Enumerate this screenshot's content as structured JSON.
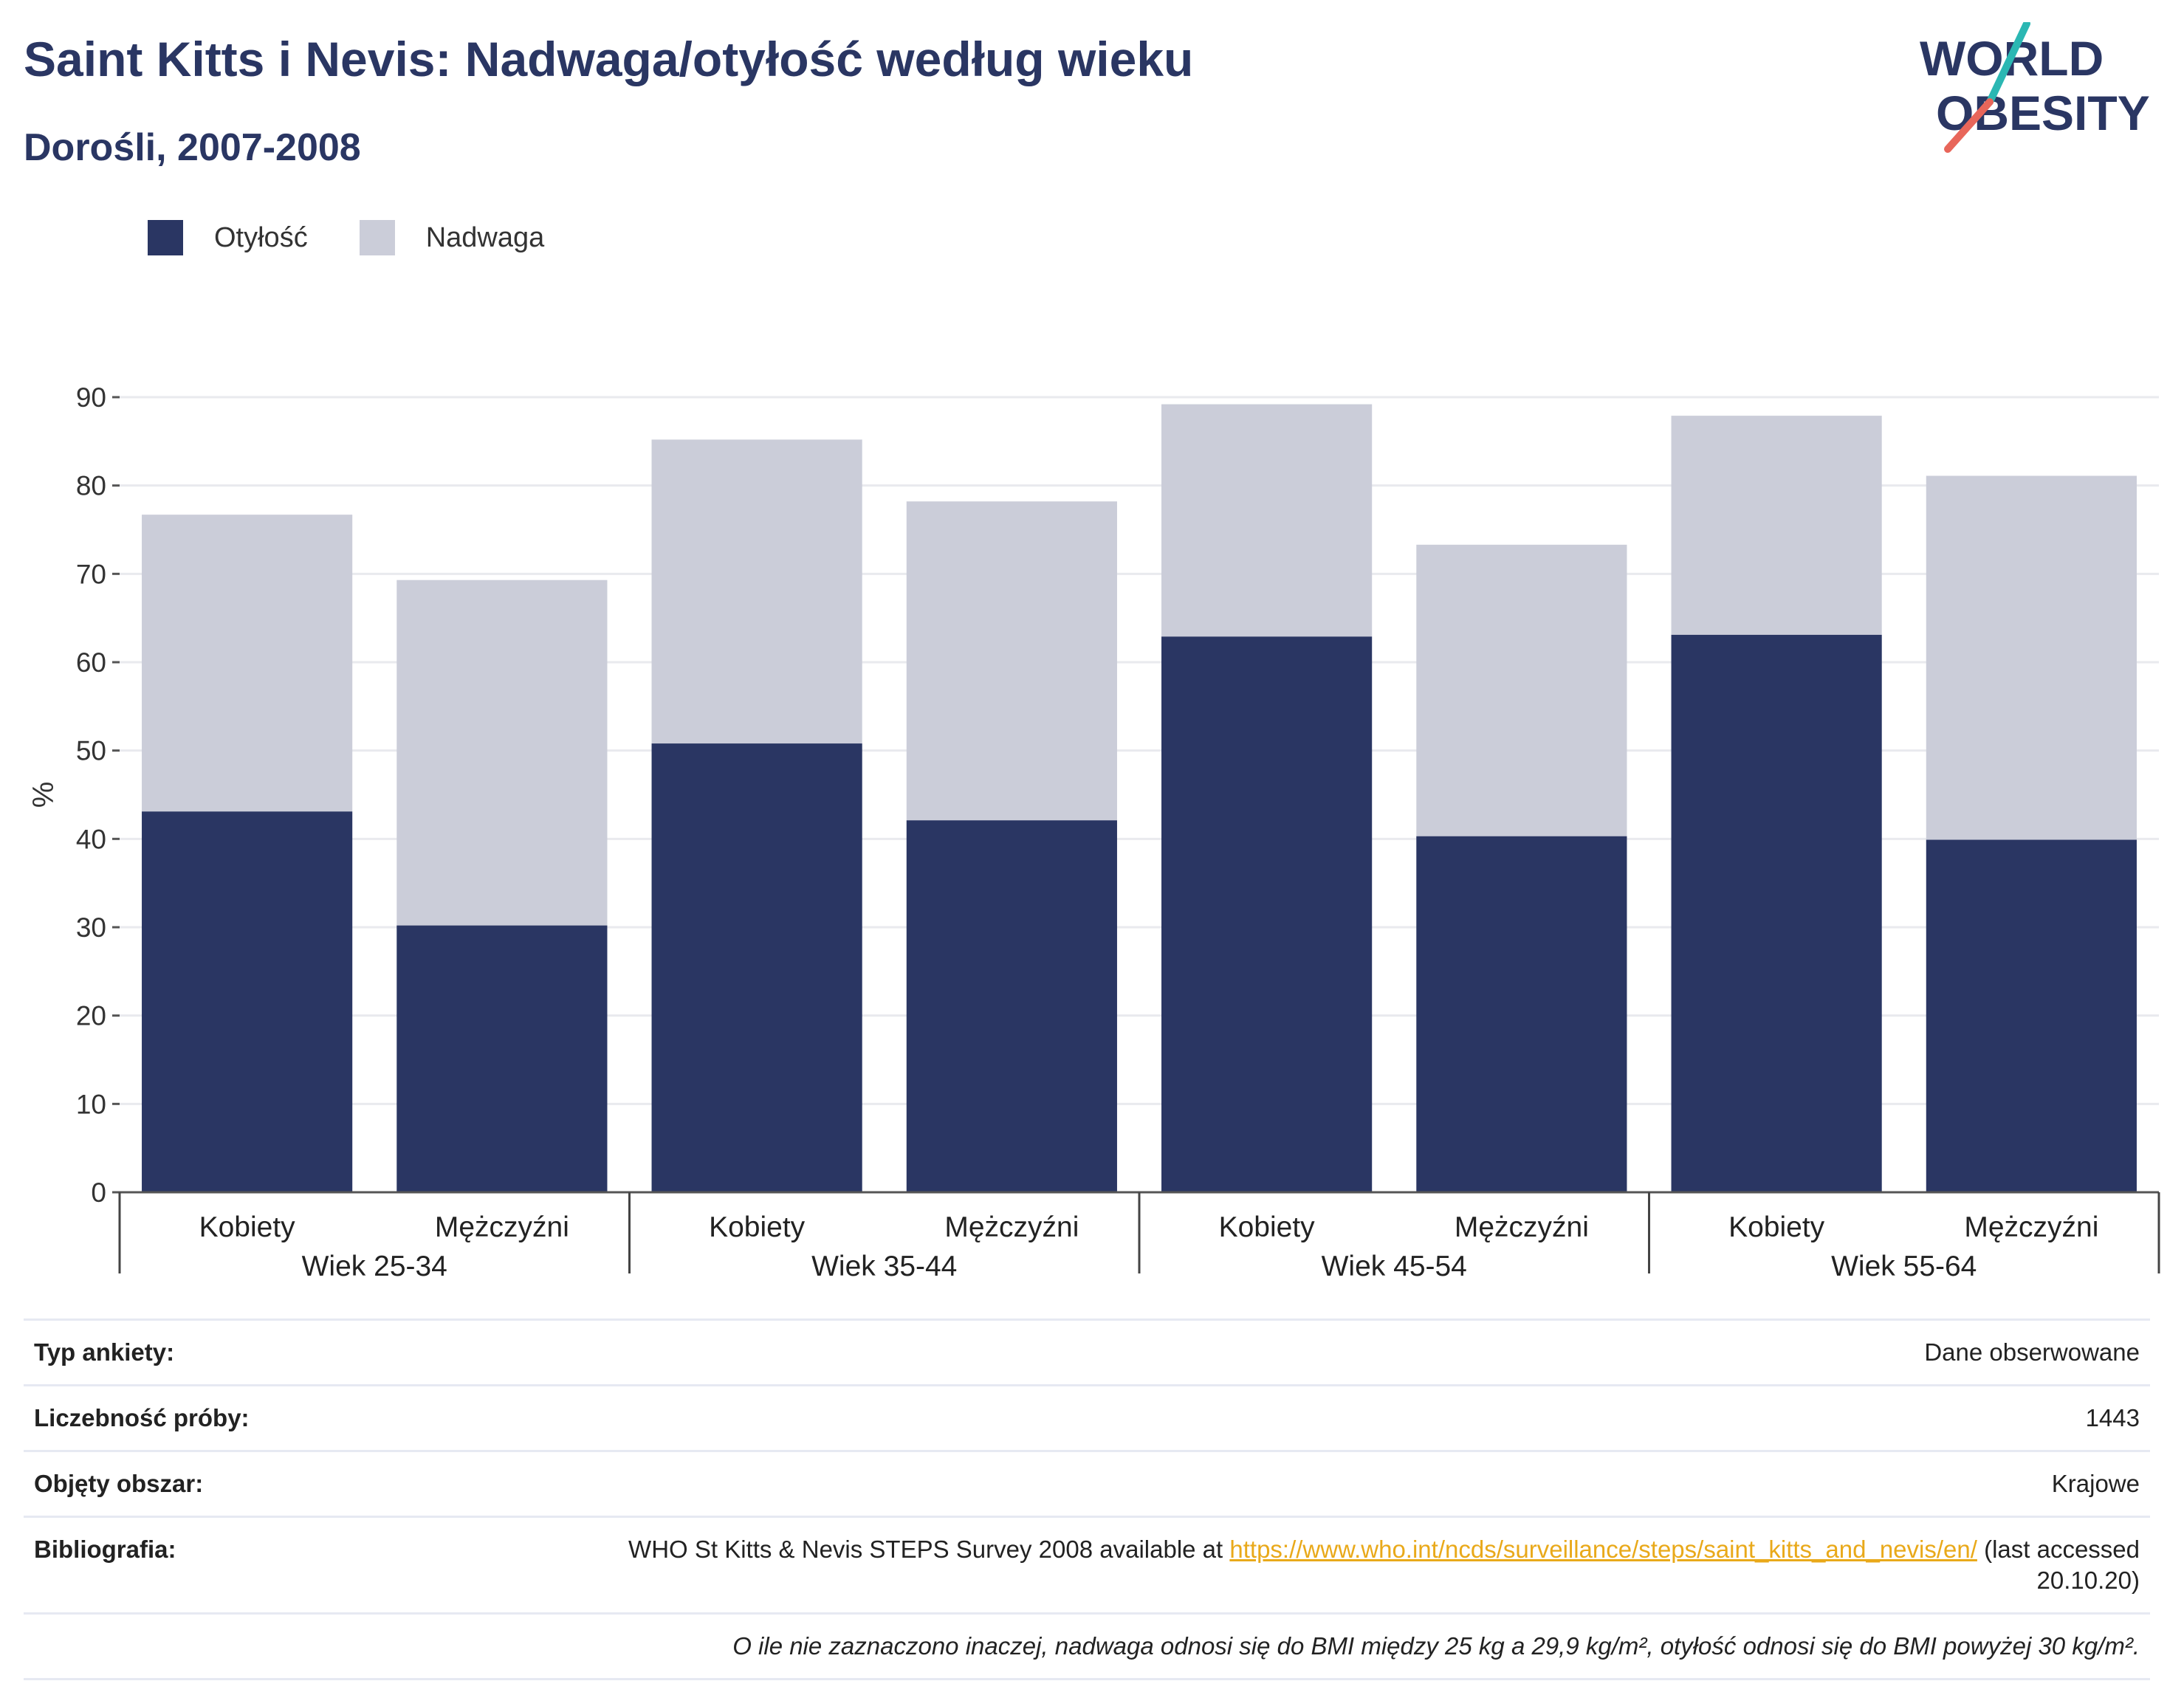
{
  "header": {
    "title": "Saint Kitts i Nevis: Nadwaga/otyłość według wieku",
    "subtitle": "Dorośli, 2007-2008"
  },
  "logo": {
    "line1": "WORLD",
    "line2": "OBESITY",
    "accent_colors": [
      "#2bb7b3",
      "#e8665a"
    ]
  },
  "legend": {
    "items": [
      {
        "label": "Otyłość",
        "color": "#2a3663"
      },
      {
        "label": "Nadwaga",
        "color": "#cbcdd9"
      }
    ]
  },
  "chart_data": {
    "type": "bar",
    "stacked": true,
    "ylabel": "%",
    "ylim": [
      0,
      90
    ],
    "yticks": [
      0,
      10,
      20,
      30,
      40,
      50,
      60,
      70,
      80,
      90
    ],
    "grid": true,
    "groups": [
      "Wiek 25-34",
      "Wiek 35-44",
      "Wiek 45-54",
      "Wiek 55-64"
    ],
    "categories": [
      "Kobiety",
      "Mężczyźni",
      "Kobiety",
      "Mężczyźni",
      "Kobiety",
      "Mężczyźni",
      "Kobiety",
      "Mężczyźni"
    ],
    "series": [
      {
        "name": "Otyłość",
        "color": "#2a3663",
        "values": [
          43.1,
          30.2,
          50.8,
          42.1,
          62.9,
          40.3,
          63.1,
          39.9
        ]
      },
      {
        "name": "Nadwaga",
        "color": "#cbcdd9",
        "values": [
          33.6,
          39.1,
          34.4,
          36.1,
          26.3,
          33.0,
          24.8,
          41.2
        ]
      }
    ]
  },
  "info": {
    "rows": [
      {
        "label": "Typ ankiety:",
        "value": "Dane obserwowane"
      },
      {
        "label": "Liczebność próby:",
        "value": "1443"
      },
      {
        "label": "Objęty obszar:",
        "value": "Krajowe"
      }
    ],
    "bibliography": {
      "label": "Bibliografia:",
      "text_before": "WHO St Kitts & Nevis STEPS Survey 2008 available at ",
      "link": "https://www.who.int/ncds/surveillance/steps/saint_kitts_and_nevis/en/",
      "text_after": " (last accessed 20.10.20)"
    },
    "note": "O ile nie zaznaczono inaczej, nadwaga odnosi się do BMI między 25 kg a 29,9 kg/m², otyłość odnosi się do BMI powyżej 30 kg/m²."
  }
}
